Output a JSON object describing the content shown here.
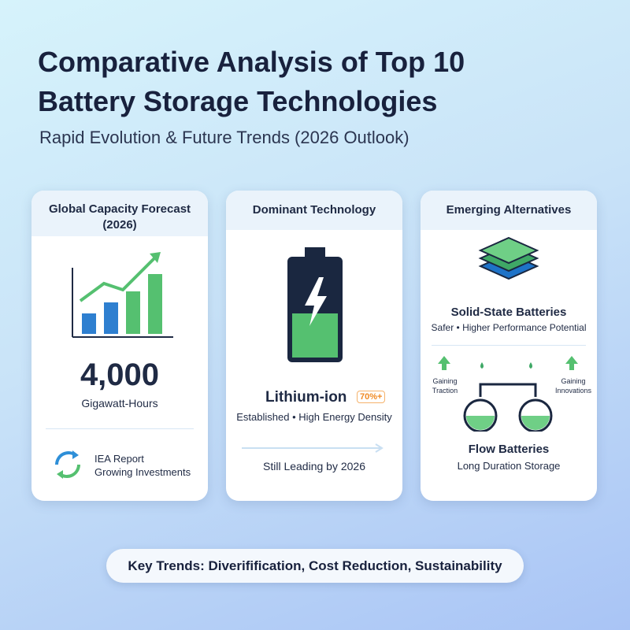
{
  "header": {
    "title_lines": [
      "Comparative Analysis of Top 10",
      "Battery Storage Technologies"
    ],
    "subtitle": "Rapid Evolution & Future Trends (2026 Outlook)"
  },
  "cards": [
    {
      "title": "Global Capacity Forecast (2026)",
      "value": "4,000",
      "unit": "Gigawatt-Hours",
      "note_lines": [
        "IEA Report",
        "Growing Investments"
      ]
    },
    {
      "title": "Dominant Technology",
      "name": "Lithium-ion",
      "badge": "70%+",
      "description": "Established • High Energy Density",
      "footer": "Still Leading by 2026"
    },
    {
      "title": "Emerging Alternatives",
      "items": [
        {
          "name": "Solid-State Batteries",
          "description": "Safer • Higher Performance Potential"
        },
        {
          "name": "Flow Batteries",
          "description": "Long Duration Storage"
        }
      ],
      "side_labels": [
        "Gaining Traction",
        "Gaining Innovations"
      ]
    }
  ],
  "footer": "Key Trends: Diverifification, Cost Reduction, Sustainability"
}
